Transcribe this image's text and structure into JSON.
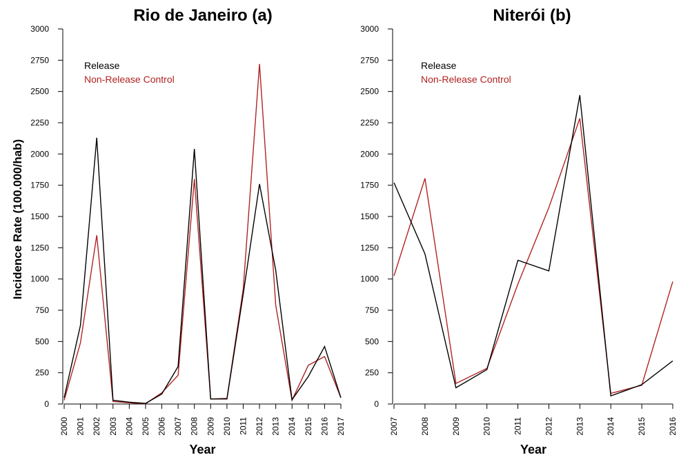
{
  "figure": {
    "ylabel": "Incidence Rate (100.000/hab)"
  },
  "chart_data": [
    {
      "type": "line",
      "title": "Rio de Janeiro (a)",
      "xlabel": "Year",
      "ylabel": "Incidence Rate (100.000/hab)",
      "ylim": [
        0,
        3000
      ],
      "y_ticks": [
        0,
        250,
        500,
        750,
        1000,
        1250,
        1500,
        1750,
        2000,
        2250,
        2500,
        2750,
        3000
      ],
      "x": [
        "2000",
        "2001",
        "2002",
        "2003",
        "2004",
        "2005",
        "2006",
        "2007",
        "2008",
        "2009",
        "2010",
        "2011",
        "2012",
        "2013",
        "2014",
        "2015",
        "2016",
        "2017"
      ],
      "legend_position": "top-left",
      "grid": false,
      "series": [
        {
          "name": "Release",
          "color": "#000000",
          "values": [
            50,
            630,
            2130,
            30,
            15,
            5,
            80,
            300,
            2040,
            40,
            40,
            880,
            1760,
            1070,
            35,
            220,
            460,
            50
          ]
        },
        {
          "name": "Non-Release Control",
          "color": "#b22222",
          "values": [
            30,
            490,
            1350,
            20,
            10,
            2,
            90,
            230,
            1800,
            40,
            45,
            920,
            2720,
            790,
            30,
            310,
            380,
            50
          ]
        }
      ]
    },
    {
      "type": "line",
      "title": "Niterói (b)",
      "xlabel": "Year",
      "ylabel": "",
      "ylim": [
        0,
        3000
      ],
      "y_ticks": [
        0,
        250,
        500,
        750,
        1000,
        1250,
        1500,
        1750,
        2000,
        2250,
        2500,
        2750,
        3000
      ],
      "x": [
        "2007",
        "2008",
        "2009",
        "2010",
        "2011",
        "2012",
        "2013",
        "2014",
        "2015",
        "2016"
      ],
      "legend_position": "top-left",
      "grid": false,
      "series": [
        {
          "name": "Release",
          "color": "#000000",
          "values": [
            1770,
            1200,
            130,
            275,
            1150,
            1065,
            2470,
            65,
            155,
            345
          ]
        },
        {
          "name": "Non-Release Control",
          "color": "#b22222",
          "values": [
            1025,
            1805,
            165,
            285,
            960,
            1570,
            2285,
            85,
            150,
            980
          ]
        }
      ]
    }
  ]
}
